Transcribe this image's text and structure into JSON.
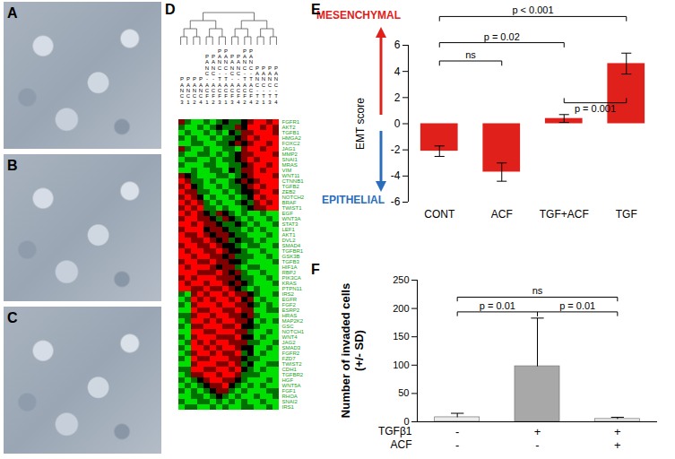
{
  "chart_data": [
    {
      "type": "image",
      "title": "A"
    },
    {
      "type": "image",
      "title": "B"
    },
    {
      "type": "image",
      "title": "C"
    },
    {
      "type": "heatmap",
      "title": "D",
      "columns": [
        "PANC3",
        "PANC1",
        "PANC2",
        "PANC4",
        "PANC-ACF1",
        "PANC-ACF2",
        "PANC-TACF3",
        "PANC-TACF1",
        "PANC-ACF3",
        "PANC-ACF4",
        "PANC-TACF2",
        "PANC-TACF4",
        "PANC-T2",
        "PANC-T1",
        "PANC-T3",
        "PANC-T4"
      ],
      "rows": [
        "FGFR1",
        "AKT2",
        "TGFB1",
        "HMGA2",
        "FOXC2",
        "JAG1",
        "MMP2",
        "SNAI1",
        "MRAS",
        "VIM",
        "WNT11",
        "CTNNB1",
        "TGFB2",
        "ZEB2",
        "NOTCH2",
        "BRAF",
        "TWIST1",
        "EGF",
        "WNT3A",
        "STAT3",
        "LEF1",
        "AKT1",
        "DVL2",
        "SMAD4",
        "TGFBR1",
        "GSK3B",
        "TGFB3",
        "HIF1A",
        "RBPJ",
        "PIK3CA",
        "KRAS",
        "PTPN11",
        "IRS2",
        "EGFR",
        "FGF2",
        "ESRP2",
        "HRAS",
        "MAP2K2",
        "GSC",
        "NOTCH1",
        "WNT4",
        "JAG2",
        "SMAD3",
        "FGFR2",
        "FZD7",
        "TWIST2",
        "CDH1",
        "TGFBR2",
        "HGF",
        "WNT5A",
        "FGF1",
        "RHOA",
        "SNAI2",
        "IRS1"
      ],
      "cells": [
        [
          1,
          -1,
          -2,
          -2,
          -1,
          -2,
          -1,
          0,
          -1,
          -1,
          0,
          1,
          2,
          2,
          1,
          2
        ],
        [
          -1,
          -2,
          -2,
          -1,
          -2,
          -1,
          0,
          -1,
          -1,
          1,
          0,
          2,
          2,
          1,
          2,
          1
        ],
        [
          -2,
          -1,
          -2,
          -2,
          -1,
          -2,
          -1,
          -2,
          0,
          -1,
          1,
          1,
          2,
          2,
          2,
          1
        ],
        [
          -1,
          -2,
          -1,
          -2,
          -2,
          -1,
          -2,
          -1,
          -1,
          0,
          1,
          2,
          1,
          2,
          2,
          2
        ],
        [
          -2,
          -2,
          -1,
          -1,
          -2,
          -2,
          -1,
          -1,
          0,
          1,
          0,
          1,
          2,
          2,
          1,
          2
        ],
        [
          1,
          -1,
          -2,
          -2,
          -1,
          -2,
          -2,
          -1,
          -1,
          -2,
          1,
          2,
          2,
          1,
          2,
          2
        ],
        [
          -1,
          -2,
          -2,
          -1,
          -1,
          -2,
          -1,
          -2,
          -1,
          0,
          1,
          1,
          2,
          2,
          2,
          1
        ],
        [
          -2,
          -1,
          -1,
          -2,
          -2,
          -1,
          -2,
          -1,
          -1,
          0,
          1,
          2,
          1,
          2,
          2,
          2
        ],
        [
          -1,
          -2,
          -2,
          -2,
          -1,
          -1,
          -2,
          -2,
          -1,
          -1,
          0,
          1,
          2,
          2,
          1,
          2
        ],
        [
          -2,
          -2,
          -1,
          -2,
          -2,
          -1,
          -1,
          -2,
          0,
          -1,
          1,
          1,
          2,
          1,
          2,
          2
        ],
        [
          1,
          0,
          -1,
          -2,
          -2,
          -2,
          -1,
          -1,
          -2,
          -1,
          0,
          1,
          2,
          2,
          2,
          1
        ],
        [
          2,
          1,
          -1,
          -1,
          -2,
          -1,
          -2,
          -2,
          -1,
          0,
          1,
          0,
          1,
          2,
          2,
          2
        ],
        [
          1,
          2,
          0,
          -1,
          -2,
          -2,
          -1,
          -2,
          -1,
          -1,
          0,
          1,
          2,
          1,
          2,
          2
        ],
        [
          2,
          1,
          1,
          -1,
          -1,
          -2,
          -2,
          -1,
          -2,
          -1,
          0,
          0,
          1,
          2,
          2,
          1
        ],
        [
          1,
          2,
          1,
          0,
          -2,
          -1,
          -2,
          -2,
          -1,
          -2,
          -1,
          0,
          2,
          1,
          2,
          2
        ],
        [
          2,
          1,
          2,
          1,
          -1,
          -2,
          -1,
          -2,
          -2,
          -1,
          0,
          -1,
          1,
          2,
          1,
          2
        ],
        [
          1,
          2,
          1,
          2,
          -1,
          -1,
          -2,
          -1,
          -2,
          -2,
          -1,
          0,
          1,
          1,
          2,
          2
        ],
        [
          2,
          1,
          2,
          1,
          0,
          -1,
          1,
          0,
          -1,
          -2,
          -1,
          -2,
          -2,
          -1,
          -2,
          -2
        ],
        [
          1,
          2,
          2,
          1,
          1,
          0,
          -1,
          1,
          0,
          -1,
          -2,
          -1,
          -2,
          -2,
          -1,
          -2
        ],
        [
          2,
          2,
          1,
          2,
          1,
          1,
          0,
          -1,
          -1,
          0,
          -1,
          -2,
          -1,
          -2,
          -2,
          -1
        ],
        [
          1,
          2,
          2,
          2,
          0,
          1,
          1,
          0,
          -1,
          -1,
          -2,
          -1,
          -2,
          -1,
          -2,
          -2
        ],
        [
          2,
          1,
          1,
          2,
          1,
          0,
          1,
          1,
          0,
          -1,
          -1,
          -2,
          -2,
          -2,
          -1,
          -2
        ],
        [
          2,
          2,
          1,
          1,
          2,
          1,
          0,
          1,
          -1,
          0,
          -1,
          -1,
          -2,
          -1,
          -2,
          -2
        ],
        [
          1,
          2,
          2,
          1,
          1,
          2,
          1,
          0,
          0,
          -1,
          -2,
          -1,
          -1,
          -2,
          -2,
          -1
        ],
        [
          2,
          1,
          2,
          2,
          1,
          1,
          2,
          1,
          0,
          0,
          -1,
          -2,
          -2,
          -1,
          -2,
          -2
        ],
        [
          2,
          2,
          1,
          2,
          2,
          1,
          1,
          0,
          1,
          -1,
          -1,
          -1,
          -2,
          -2,
          -1,
          -2
        ],
        [
          1,
          2,
          2,
          1,
          1,
          2,
          1,
          1,
          0,
          0,
          -1,
          -2,
          -2,
          -2,
          -2,
          -1
        ],
        [
          2,
          1,
          2,
          2,
          2,
          1,
          0,
          1,
          1,
          -1,
          -2,
          -1,
          -1,
          -2,
          -2,
          -2
        ],
        [
          2,
          2,
          2,
          1,
          1,
          1,
          2,
          1,
          0,
          1,
          -1,
          -2,
          -2,
          -1,
          -2,
          -2
        ],
        [
          1,
          2,
          1,
          2,
          2,
          2,
          1,
          1,
          1,
          0,
          -1,
          -1,
          -2,
          -2,
          -1,
          -2
        ],
        [
          2,
          1,
          2,
          2,
          1,
          2,
          2,
          1,
          0,
          1,
          0,
          -1,
          -2,
          -2,
          -2,
          -1
        ],
        [
          2,
          2,
          1,
          1,
          2,
          1,
          1,
          2,
          1,
          0,
          -1,
          -2,
          -1,
          -2,
          -2,
          -2
        ],
        [
          -1,
          -2,
          1,
          2,
          1,
          2,
          2,
          1,
          2,
          1,
          1,
          0,
          -1,
          -2,
          -2,
          -1
        ],
        [
          -2,
          -1,
          2,
          1,
          2,
          1,
          2,
          2,
          1,
          2,
          0,
          1,
          -2,
          -1,
          -2,
          -2
        ],
        [
          -1,
          -2,
          1,
          2,
          2,
          2,
          1,
          2,
          2,
          1,
          1,
          0,
          -1,
          -2,
          -1,
          -2
        ],
        [
          -2,
          -2,
          2,
          1,
          1,
          2,
          2,
          1,
          1,
          2,
          1,
          1,
          -2,
          -2,
          -1,
          -1
        ],
        [
          -1,
          -1,
          1,
          2,
          2,
          1,
          2,
          2,
          1,
          1,
          0,
          1,
          -1,
          -2,
          -2,
          -2
        ],
        [
          -2,
          -1,
          2,
          2,
          1,
          2,
          1,
          2,
          2,
          1,
          1,
          0,
          -2,
          -1,
          -2,
          -1
        ],
        [
          -1,
          -2,
          1,
          1,
          2,
          2,
          2,
          1,
          1,
          2,
          0,
          0,
          -1,
          -2,
          -2,
          -2
        ],
        [
          -2,
          -2,
          2,
          2,
          1,
          1,
          2,
          2,
          2,
          1,
          1,
          -1,
          -2,
          -2,
          -1,
          -2
        ],
        [
          -1,
          -2,
          1,
          2,
          2,
          2,
          1,
          1,
          1,
          2,
          0,
          0,
          -2,
          -1,
          -2,
          -2
        ],
        [
          -2,
          -1,
          2,
          1,
          2,
          1,
          2,
          2,
          1,
          1,
          1,
          -1,
          -1,
          -2,
          -2,
          -1
        ],
        [
          -1,
          -2,
          2,
          2,
          1,
          2,
          1,
          2,
          2,
          1,
          0,
          0,
          -2,
          -2,
          -1,
          -2
        ],
        [
          -2,
          -1,
          1,
          2,
          2,
          1,
          2,
          1,
          1,
          2,
          -1,
          0,
          -2,
          -1,
          -2,
          -2
        ],
        [
          -1,
          -2,
          2,
          1,
          1,
          2,
          2,
          2,
          1,
          1,
          0,
          -1,
          -1,
          -2,
          -2,
          -2
        ],
        [
          -2,
          -2,
          1,
          2,
          2,
          2,
          1,
          1,
          2,
          1,
          -1,
          0,
          -2,
          -2,
          -1,
          -1
        ],
        [
          -1,
          -1,
          2,
          2,
          1,
          1,
          2,
          2,
          1,
          2,
          0,
          -1,
          -2,
          -1,
          -2,
          -2
        ],
        [
          -2,
          -1,
          1,
          1,
          2,
          2,
          1,
          2,
          2,
          1,
          -1,
          -1,
          -1,
          -2,
          -2,
          -2
        ],
        [
          -1,
          -2,
          -1,
          0,
          1,
          2,
          2,
          1,
          1,
          0,
          -1,
          -2,
          -2,
          -2,
          -1,
          -2
        ],
        [
          -2,
          -1,
          -2,
          -1,
          0,
          1,
          1,
          2,
          0,
          -1,
          -2,
          -1,
          -2,
          -1,
          -2,
          -2
        ],
        [
          -1,
          -2,
          -1,
          -2,
          -1,
          0,
          1,
          1,
          -1,
          -2,
          -1,
          -2,
          -2,
          -2,
          -1,
          -1
        ],
        [
          -2,
          -2,
          -1,
          -1,
          -2,
          -1,
          0,
          -1,
          -2,
          -1,
          -2,
          -2,
          -1,
          -2,
          -2,
          -1
        ],
        [
          -1,
          -2,
          -2,
          -1,
          -1,
          -2,
          -1,
          -2,
          -1,
          -2,
          -1,
          -2,
          -2,
          -1,
          -2,
          -2
        ],
        [
          -2,
          -1,
          -1,
          -2,
          -2,
          -1,
          -2,
          -1,
          -2,
          -2,
          -1,
          -1,
          -2,
          -2,
          -1,
          -2
        ]
      ],
      "zlim": [
        -2,
        2
      ],
      "colors": [
        "#00e000",
        "#000000",
        "#ff0000"
      ]
    },
    {
      "type": "bar",
      "title": "E",
      "categories": [
        "CONT",
        "ACF",
        "TGF+ACF",
        "TGF"
      ],
      "values": [
        -2.1,
        -3.7,
        0.4,
        4.6
      ],
      "errors": [
        0.4,
        0.7,
        0.3,
        0.8
      ],
      "color": "#e0201b",
      "ylabel": "EMT score",
      "ylim": [
        -6,
        6
      ],
      "yticks": [
        -6,
        -4,
        -2,
        0,
        2,
        4,
        6
      ],
      "annotations": [
        {
          "text": "MESENCHYMAL",
          "color": "#e0201b"
        },
        {
          "text": "EPITHELIAL",
          "color": "#2a6ebb"
        }
      ],
      "comparisons": [
        {
          "from": "CONT",
          "to": "ACF",
          "text": "ns",
          "y": 4.8
        },
        {
          "from": "CONT",
          "to": "TGF+ACF",
          "text": "p = 0.02",
          "y": 6.2
        },
        {
          "from": "CONT",
          "to": "TGF",
          "text": "p < 0.001",
          "y": 8.2
        },
        {
          "from": "TGF+ACF",
          "to": "TGF",
          "text": "p = 0.001",
          "y": 1.6
        }
      ]
    },
    {
      "type": "bar",
      "title": "F",
      "factors": [
        {
          "name": "TGFβ1",
          "levels": [
            "-",
            "+",
            "+"
          ]
        },
        {
          "name": "ACF",
          "levels": [
            "-",
            "-",
            "+"
          ]
        }
      ],
      "values": [
        8,
        98,
        5
      ],
      "errors": [
        7,
        85,
        3
      ],
      "colors": [
        "#ececec",
        "#a8a8a8",
        "#ececec"
      ],
      "ylabel": [
        "Number of invaded cells",
        "(+/- SD)"
      ],
      "ylim": [
        0,
        250
      ],
      "yticks": [
        0,
        50,
        100,
        150,
        200,
        250
      ],
      "comparisons": [
        {
          "from": 0,
          "to": 1,
          "text": "p = 0.01",
          "y": 194
        },
        {
          "from": 1,
          "to": 2,
          "text": "p = 0.01",
          "y": 194
        },
        {
          "from": 0,
          "to": 2,
          "text": "ns",
          "y": 220
        }
      ]
    }
  ]
}
